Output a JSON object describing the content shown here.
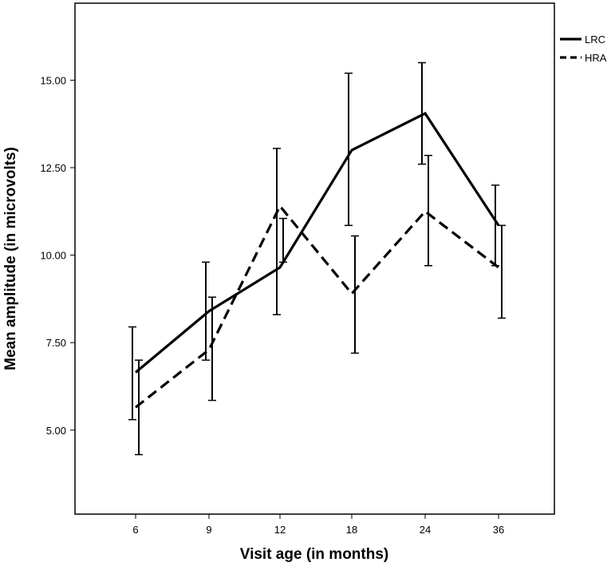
{
  "chart_data": {
    "type": "line",
    "categories": [
      "6",
      "9",
      "12",
      "18",
      "24",
      "36"
    ],
    "xlabel": "Visit age (in months)",
    "ylabel": "Mean amplitude (in microvolts)",
    "ylim": [
      2.6,
      17.2
    ],
    "yticks": [
      "5.00",
      "7.50",
      "10.00",
      "12.50",
      "15.00"
    ],
    "grid": false,
    "legend_position": "outside-top-right",
    "series": [
      {
        "name": "LRC",
        "style": "solid",
        "color": "#000000",
        "values": [
          6.65,
          8.4,
          9.65,
          13.0,
          14.05,
          10.85
        ],
        "error_low": [
          5.3,
          7.0,
          8.3,
          10.85,
          12.6,
          9.7
        ],
        "error_high": [
          7.95,
          9.8,
          13.05,
          15.2,
          15.5,
          12.0
        ]
      },
      {
        "name": "HRA",
        "style": "dashed",
        "color": "#000000",
        "values": [
          5.65,
          7.3,
          11.4,
          8.9,
          11.25,
          9.65
        ],
        "error_low": [
          4.3,
          5.85,
          9.8,
          7.2,
          9.7,
          8.2
        ],
        "error_high": [
          7.0,
          8.8,
          11.05,
          10.55,
          12.85,
          10.85
        ]
      }
    ]
  }
}
